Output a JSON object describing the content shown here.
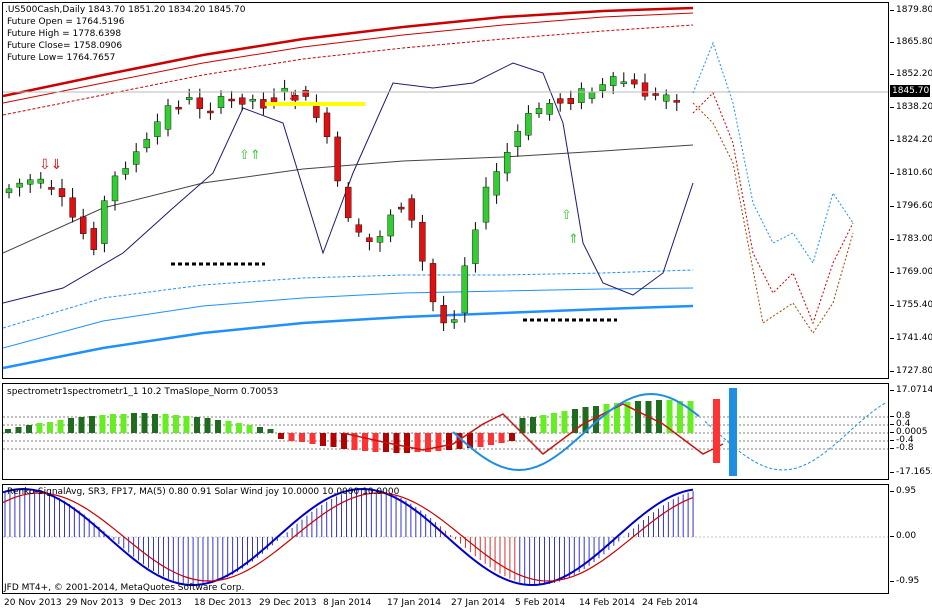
{
  "main": {
    "symbol_line": ".US500Cash,Daily  1843.70 1851.20 1834.20 1845.70",
    "future_open": "Future Open = 1764.5196",
    "future_high": "Future High = 1778.6398",
    "future_close": "Future Close= 1758.0906",
    "future_low": "Future Low= 1764.7657",
    "current_price": "1845.70",
    "price_axis": [
      "1879.80",
      "1865.80",
      "1852.20",
      "1838.20",
      "1824.20",
      "1810.60",
      "1796.60",
      "1783.00",
      "1769.00",
      "1755.40",
      "1741.40",
      "1727.80"
    ]
  },
  "oscillator": {
    "label": "spectrometr1spectrometr1_1  10.2 TmaSlope_Norm 0.70053",
    "axis": [
      "17.0714",
      "0.8",
      "0.4",
      "0.0005",
      "-0.4",
      "-0.8",
      "-17.1653"
    ]
  },
  "signal": {
    "label": "Renko-SignalAvg, SR3, FP17, MA(5) 0.80 0.91  Solar Wind joy 10.0000 10.0000 10.0000",
    "axis": [
      "0.95",
      "0.00",
      "-0.95"
    ],
    "copyright": "JFD MT4+, © 2001-2014, MetaQuotes Software Corp."
  },
  "time_axis": [
    "20 Nov 2013",
    "29 Nov 2013",
    "9 Dec 2013",
    "18 Dec 2013",
    "29 Dec 2013",
    "8 Jan 2014",
    "17 Jan 2014",
    "27 Jan 2014",
    "5 Feb 2014",
    "14 Feb 2014",
    "24 Feb 2014"
  ],
  "colors": {
    "bull": "#33cc33",
    "bear": "#dd1111",
    "ma_red": "#cc0000",
    "ma_blue": "#1e90ff",
    "bollinger": "#1a1a6e",
    "highlight": "#ffff00",
    "osc_dark_green": "#1f6b1f",
    "osc_light_green": "#66ee22",
    "osc_dark_red": "#b30000",
    "osc_light_red": "#ff3333",
    "osc_blue_wave": "#1e8fe0",
    "signal_blue": "#0000cc",
    "signal_red": "#cc0000"
  }
}
